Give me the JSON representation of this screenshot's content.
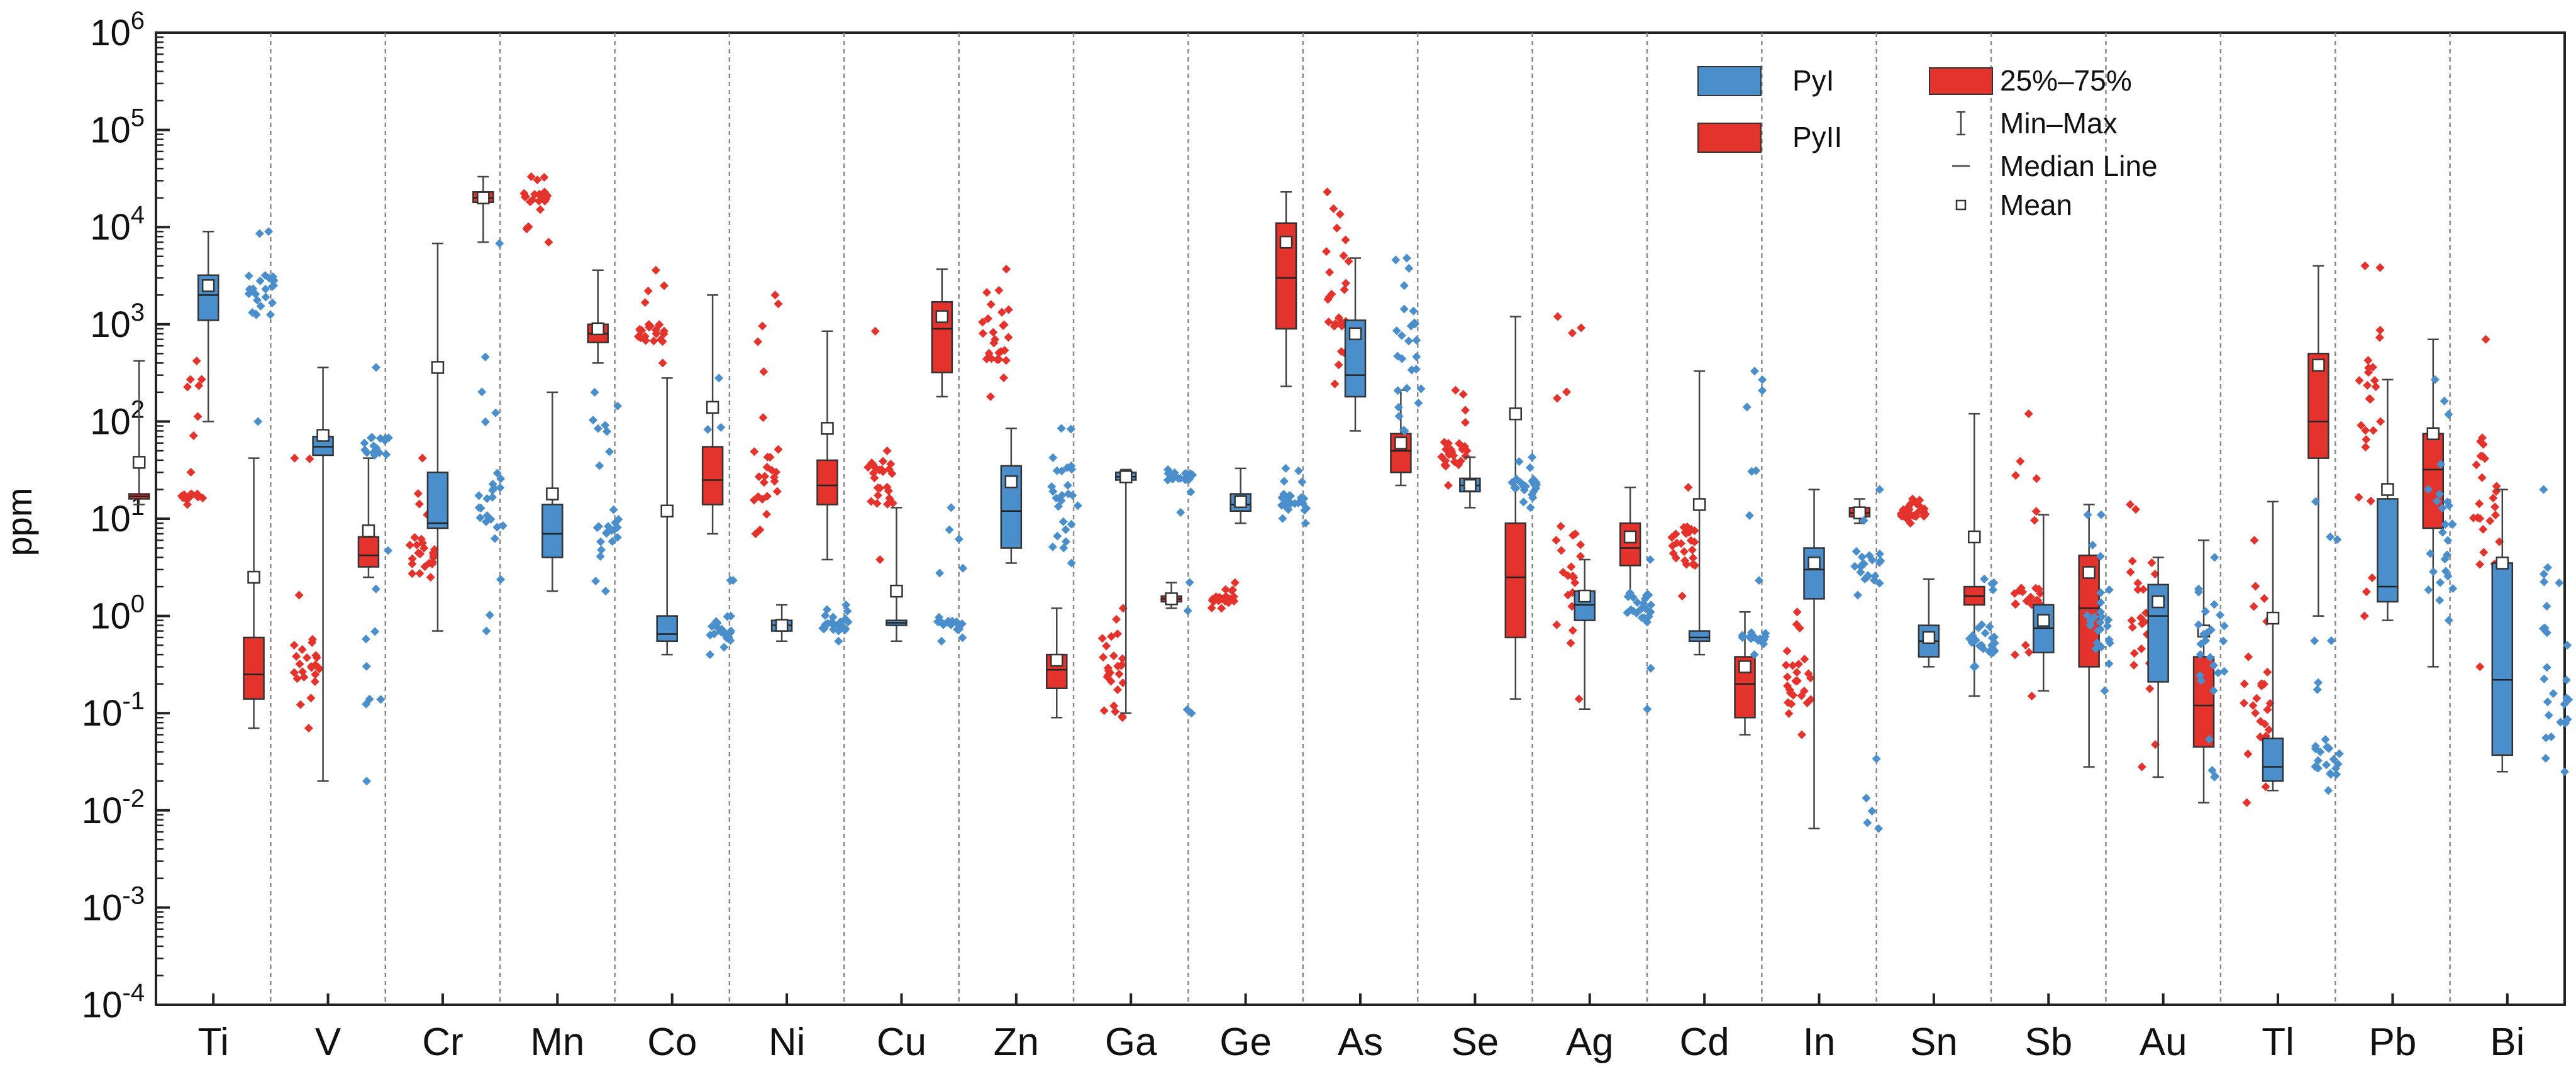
{
  "chart_data": {
    "type": "box",
    "ylabel": "ppm",
    "yscale": "log",
    "ylim": [
      0.0001,
      1000000
    ],
    "yticks": [
      {
        "base": "10",
        "exp": "6",
        "value": 1000000
      },
      {
        "base": "10",
        "exp": "5",
        "value": 100000
      },
      {
        "base": "10",
        "exp": "4",
        "value": 10000
      },
      {
        "base": "10",
        "exp": "3",
        "value": 1000
      },
      {
        "base": "10",
        "exp": "2",
        "value": 100
      },
      {
        "base": "10",
        "exp": "1",
        "value": 10
      },
      {
        "base": "10",
        "exp": "0",
        "value": 1
      },
      {
        "base": "10",
        "exp": "-1",
        "value": 0.1
      },
      {
        "base": "10",
        "exp": "-2",
        "value": 0.01
      },
      {
        "base": "10",
        "exp": "-3",
        "value": 0.001
      },
      {
        "base": "10",
        "exp": "-4",
        "value": 0.0001
      }
    ],
    "categories": [
      "Ti",
      "V",
      "Cr",
      "Mn",
      "Co",
      "Ni",
      "Cu",
      "Zn",
      "Ga",
      "Ge",
      "As",
      "Se",
      "Ag",
      "Cd",
      "In",
      "Sn",
      "Sb",
      "Au",
      "Tl",
      "Pb",
      "Bi"
    ],
    "colors": {
      "PyI": "#4a8fcb",
      "PyII": "#e3332c",
      "edge": "#444444"
    },
    "legend": {
      "series": [
        {
          "name": "PyI",
          "color": "#4a8fcb"
        },
        {
          "name": "PyII",
          "color": "#e3332c"
        }
      ],
      "items": [
        {
          "label": "25%–75%",
          "symbol": "box"
        },
        {
          "label": "Min–Max",
          "symbol": "whisker"
        },
        {
          "label": "Median Line",
          "symbol": "line"
        },
        {
          "label": "Mean",
          "symbol": "square"
        }
      ]
    },
    "series": [
      {
        "name": "PyII",
        "boxes": [
          {
            "category": "Ti",
            "min": 14,
            "q1": 16,
            "median": 17,
            "q3": 18,
            "max": 420,
            "mean": 38
          },
          {
            "category": "V",
            "min": 0.07,
            "q1": 0.14,
            "median": 0.25,
            "q3": 0.6,
            "max": 42,
            "mean": 2.5
          },
          {
            "category": "Cr",
            "min": 2.5,
            "q1": 3.2,
            "median": 4.2,
            "q3": 6.5,
            "max": 42,
            "mean": 7.5
          },
          {
            "category": "Mn",
            "min": 7000,
            "q1": 18000,
            "median": 20000,
            "q3": 23000,
            "max": 33000,
            "mean": 20000
          },
          {
            "category": "Co",
            "min": 400,
            "q1": 650,
            "median": 800,
            "q3": 1000,
            "max": 3600,
            "mean": 900
          },
          {
            "category": "Ni",
            "min": 7,
            "q1": 14,
            "median": 25,
            "q3": 55,
            "max": 2000,
            "mean": 140
          },
          {
            "category": "Cu",
            "min": 3.8,
            "q1": 14,
            "median": 22,
            "q3": 40,
            "max": 850,
            "mean": 85
          },
          {
            "category": "Zn",
            "min": 180,
            "q1": 320,
            "median": 900,
            "q3": 1700,
            "max": 3700,
            "mean": 1200
          },
          {
            "category": "Ga",
            "min": 0.09,
            "q1": 0.18,
            "median": 0.28,
            "q3": 0.4,
            "max": 1.2,
            "mean": 0.35
          },
          {
            "category": "Ge",
            "min": 1.2,
            "q1": 1.4,
            "median": 1.5,
            "q3": 1.6,
            "max": 2.2,
            "mean": 1.5
          },
          {
            "category": "As",
            "min": 230,
            "q1": 900,
            "median": 3000,
            "q3": 11000,
            "max": 23000,
            "mean": 7000
          },
          {
            "category": "Se",
            "min": 22,
            "q1": 30,
            "median": 50,
            "q3": 75,
            "max": 210,
            "mean": 60
          },
          {
            "category": "Ag",
            "min": 0.14,
            "q1": 0.6,
            "median": 2.5,
            "q3": 9,
            "max": 1200,
            "mean": 120
          },
          {
            "category": "Cd",
            "min": 1.6,
            "q1": 3.3,
            "median": 5,
            "q3": 9,
            "max": 21,
            "mean": 6.5
          },
          {
            "category": "In",
            "min": 0.06,
            "q1": 0.09,
            "median": 0.2,
            "q3": 0.38,
            "max": 1.1,
            "mean": 0.3
          },
          {
            "category": "Sn",
            "min": 9,
            "q1": 10.5,
            "median": 11.5,
            "q3": 13,
            "max": 16,
            "mean": 11.5
          },
          {
            "category": "Sb",
            "min": 0.15,
            "q1": 1.3,
            "median": 1.6,
            "q3": 2,
            "max": 120,
            "mean": 6.5
          },
          {
            "category": "Au",
            "min": 0.028,
            "q1": 0.3,
            "median": 1.2,
            "q3": 4.2,
            "max": 14,
            "mean": 2.8
          },
          {
            "category": "Tl",
            "min": 0.012,
            "q1": 0.045,
            "median": 0.12,
            "q3": 0.38,
            "max": 6,
            "mean": 0.7
          },
          {
            "category": "Pb",
            "min": 1,
            "q1": 42,
            "median": 100,
            "q3": 500,
            "max": 4000,
            "mean": 380
          },
          {
            "category": "Bi",
            "min": 0.3,
            "q1": 8,
            "median": 32,
            "q3": 75,
            "max": 700,
            "mean": 75
          }
        ]
      },
      {
        "name": "PyI",
        "boxes": [
          {
            "category": "Ti",
            "min": 100,
            "q1": 1100,
            "median": 2000,
            "q3": 3200,
            "max": 9000,
            "mean": 2500
          },
          {
            "category": "V",
            "min": 0.02,
            "q1": 45,
            "median": 55,
            "q3": 70,
            "max": 360,
            "mean": 72
          },
          {
            "category": "Cr",
            "min": 0.7,
            "q1": 8,
            "median": 9,
            "q3": 30,
            "max": 6800,
            "mean": 360
          },
          {
            "category": "Mn",
            "min": 1.8,
            "q1": 4,
            "median": 7,
            "q3": 14,
            "max": 200,
            "mean": 18
          },
          {
            "category": "Co",
            "min": 0.4,
            "q1": 0.55,
            "median": 0.65,
            "q3": 1,
            "max": 280,
            "mean": 12
          },
          {
            "category": "Ni",
            "min": 0.55,
            "q1": 0.7,
            "median": 0.8,
            "q3": 0.9,
            "max": 1.3,
            "mean": 0.8
          },
          {
            "category": "Cu",
            "min": 0.55,
            "q1": 0.8,
            "median": 0.85,
            "q3": 0.9,
            "max": 13,
            "mean": 1.8
          },
          {
            "category": "Zn",
            "min": 3.5,
            "q1": 5,
            "median": 12,
            "q3": 35,
            "max": 85,
            "mean": 24
          },
          {
            "category": "Ga",
            "min": 0.1,
            "q1": 25,
            "median": 27,
            "q3": 30,
            "max": 32,
            "mean": 27
          },
          {
            "category": "Ge",
            "min": 9,
            "q1": 12,
            "median": 14,
            "q3": 18,
            "max": 33,
            "mean": 15
          },
          {
            "category": "As",
            "min": 80,
            "q1": 180,
            "median": 300,
            "q3": 1100,
            "max": 4800,
            "mean": 800
          },
          {
            "category": "Se",
            "min": 13,
            "q1": 19,
            "median": 22,
            "q3": 26,
            "max": 43,
            "mean": 22
          },
          {
            "category": "Ag",
            "min": 0.11,
            "q1": 0.9,
            "median": 1.3,
            "q3": 1.8,
            "max": 3.8,
            "mean": 1.6
          },
          {
            "category": "Cd",
            "min": 0.4,
            "q1": 0.55,
            "median": 0.6,
            "q3": 0.7,
            "max": 330,
            "mean": 14
          },
          {
            "category": "In",
            "min": 0.0065,
            "q1": 1.5,
            "median": 3,
            "q3": 5,
            "max": 20,
            "mean": 3.5
          },
          {
            "category": "Sn",
            "min": 0.3,
            "q1": 0.38,
            "median": 0.55,
            "q3": 0.8,
            "max": 2.4,
            "mean": 0.6
          },
          {
            "category": "Sb",
            "min": 0.17,
            "q1": 0.42,
            "median": 0.75,
            "q3": 1.3,
            "max": 11,
            "mean": 0.9
          },
          {
            "category": "Au",
            "min": 0.022,
            "q1": 0.21,
            "median": 1,
            "q3": 2.1,
            "max": 4,
            "mean": 1.4
          },
          {
            "category": "Tl",
            "min": 0.016,
            "q1": 0.02,
            "median": 0.028,
            "q3": 0.055,
            "max": 15,
            "mean": 0.95
          },
          {
            "category": "Pb",
            "min": 0.9,
            "q1": 1.4,
            "median": 2,
            "q3": 16,
            "max": 270,
            "mean": 20
          },
          {
            "category": "Bi",
            "min": 0.025,
            "q1": 0.037,
            "median": 0.22,
            "q3": 3.5,
            "max": 20,
            "mean": 3.5
          }
        ]
      }
    ]
  }
}
